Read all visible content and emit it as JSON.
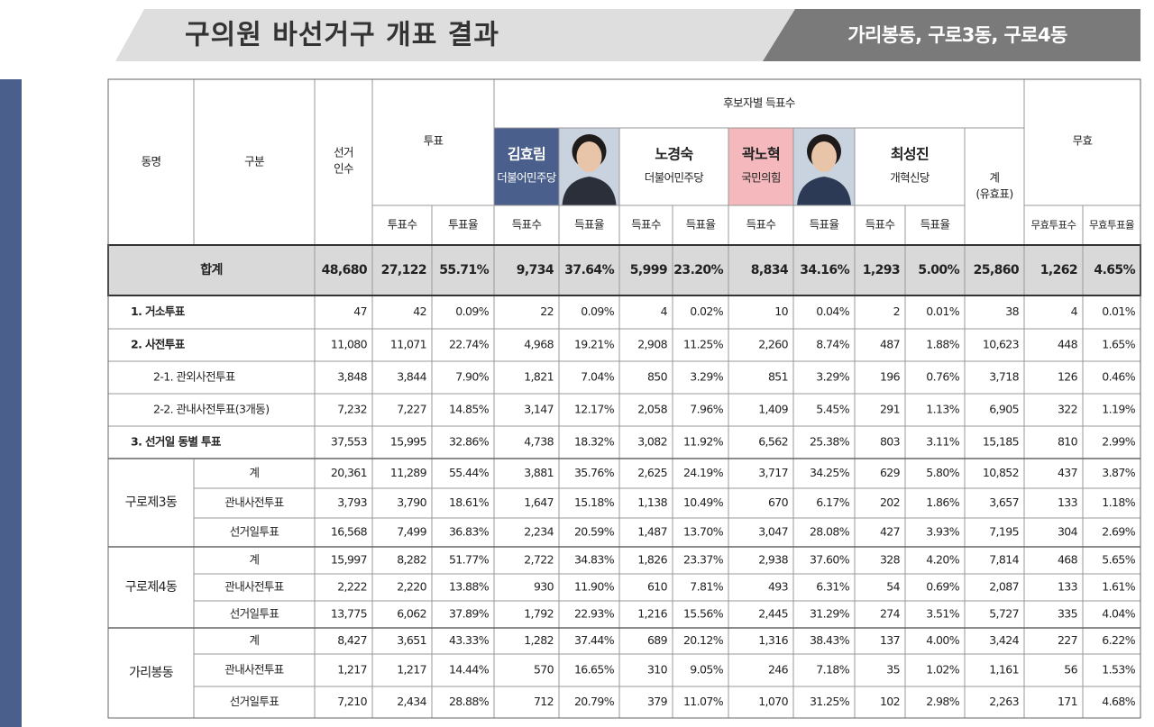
{
  "header": {
    "title": "구의원 바선거구 개표 결과",
    "region": "가리봉동, 구로3동, 구로4동"
  },
  "table": {
    "head": {
      "dong": "동명",
      "gubun": "구분",
      "electors": [
        "선거",
        "인수"
      ],
      "turnout": "투표",
      "candidates_title": "후보자별 득표수",
      "invalid": "무효",
      "valid_total": [
        "계",
        "(유효표)"
      ],
      "vote_count": "투표수",
      "vote_rate": "투표율",
      "cand_count": "득표수",
      "cand_rate": "득표율",
      "invalid_count": "무효투표수",
      "invalid_rate": "무효투표율"
    },
    "candidates": [
      {
        "name": "김효림",
        "party": "더불어민주당"
      },
      {
        "name": "노경숙",
        "party": "더불어민주당"
      },
      {
        "name": "곽노혁",
        "party": "국민의힘"
      },
      {
        "name": "최성진",
        "party": "개혁신당"
      }
    ],
    "summary_rows": [
      {
        "label": "합계",
        "cells": [
          "48,680",
          "27,122",
          "55.71%",
          "9,734",
          "37.64%",
          "5,999",
          "23.20%",
          "8,834",
          "34.16%",
          "1,293",
          "5.00%",
          "25,860",
          "1,262",
          "4.65%"
        ]
      },
      {
        "label": "1. 거소투표",
        "cells": [
          "47",
          "42",
          "0.09%",
          "22",
          "0.09%",
          "4",
          "0.02%",
          "10",
          "0.04%",
          "2",
          "0.01%",
          "38",
          "4",
          "0.01%"
        ]
      },
      {
        "label": "2.  사전투표",
        "cells": [
          "11,080",
          "11,071",
          "22.74%",
          "4,968",
          "19.21%",
          "2,908",
          "11.25%",
          "2,260",
          "8.74%",
          "487",
          "1.88%",
          "10,623",
          "448",
          "1.65%"
        ]
      },
      {
        "label": "2-1. 관외사전투표",
        "cells": [
          "3,848",
          "3,844",
          "7.90%",
          "1,821",
          "7.04%",
          "850",
          "3.29%",
          "851",
          "3.29%",
          "196",
          "0.76%",
          "3,718",
          "126",
          "0.46%"
        ]
      },
      {
        "label": "2-2. 관내사전투표(3개동)",
        "cells": [
          "7,232",
          "7,227",
          "14.85%",
          "3,147",
          "12.17%",
          "2,058",
          "7.96%",
          "1,409",
          "5.45%",
          "291",
          "1.13%",
          "6,905",
          "322",
          "1.19%"
        ]
      },
      {
        "label": "3. 선거일 동별 투표",
        "cells": [
          "37,553",
          "15,995",
          "32.86%",
          "4,738",
          "18.32%",
          "3,082",
          "11.92%",
          "6,562",
          "25.38%",
          "803",
          "3.11%",
          "15,185",
          "810",
          "2.99%"
        ]
      }
    ],
    "districts": [
      {
        "name": "구로제3동",
        "rows": [
          {
            "label": "계",
            "cells": [
              "20,361",
              "11,289",
              "55.44%",
              "3,881",
              "35.76%",
              "2,625",
              "24.19%",
              "3,717",
              "34.25%",
              "629",
              "5.80%",
              "10,852",
              "437",
              "3.87%"
            ]
          },
          {
            "label": "관내사전투표",
            "cells": [
              "3,793",
              "3,790",
              "18.61%",
              "1,647",
              "15.18%",
              "1,138",
              "10.49%",
              "670",
              "6.17%",
              "202",
              "1.86%",
              "3,657",
              "133",
              "1.18%"
            ]
          },
          {
            "label": "선거일투표",
            "cells": [
              "16,568",
              "7,499",
              "36.83%",
              "2,234",
              "20.59%",
              "1,487",
              "13.70%",
              "3,047",
              "28.08%",
              "427",
              "3.93%",
              "7,195",
              "304",
              "2.69%"
            ]
          }
        ]
      },
      {
        "name": "구로제4동",
        "rows": [
          {
            "label": "계",
            "cells": [
              "15,997",
              "8,282",
              "51.77%",
              "2,722",
              "34.83%",
              "1,826",
              "23.37%",
              "2,938",
              "37.60%",
              "328",
              "4.20%",
              "7,814",
              "468",
              "5.65%"
            ]
          },
          {
            "label": "관내사전투표",
            "cells": [
              "2,222",
              "2,220",
              "13.88%",
              "930",
              "11.90%",
              "610",
              "7.81%",
              "493",
              "6.31%",
              "54",
              "0.69%",
              "2,087",
              "133",
              "1.61%"
            ]
          },
          {
            "label": "선거일투표",
            "cells": [
              "13,775",
              "6,062",
              "37.89%",
              "1,792",
              "22.93%",
              "1,216",
              "15.56%",
              "2,445",
              "31.29%",
              "274",
              "3.51%",
              "5,727",
              "335",
              "4.04%"
            ]
          }
        ]
      },
      {
        "name": "가리봉동",
        "rows": [
          {
            "label": "계",
            "cells": [
              "8,427",
              "3,651",
              "43.33%",
              "1,282",
              "37.44%",
              "689",
              "20.12%",
              "1,316",
              "38.43%",
              "137",
              "4.00%",
              "3,424",
              "227",
              "6.22%"
            ]
          },
          {
            "label": "관내사전투표",
            "cells": [
              "1,217",
              "1,217",
              "14.44%",
              "570",
              "16.65%",
              "310",
              "9.05%",
              "246",
              "7.18%",
              "35",
              "1.02%",
              "1,161",
              "56",
              "1.53%"
            ]
          },
          {
            "label": "선거일투표",
            "cells": [
              "7,210",
              "2,434",
              "28.88%",
              "712",
              "20.79%",
              "379",
              "11.07%",
              "1,070",
              "31.25%",
              "102",
              "2.98%",
              "2,263",
              "171",
              "4.68%"
            ]
          }
        ]
      }
    ]
  }
}
